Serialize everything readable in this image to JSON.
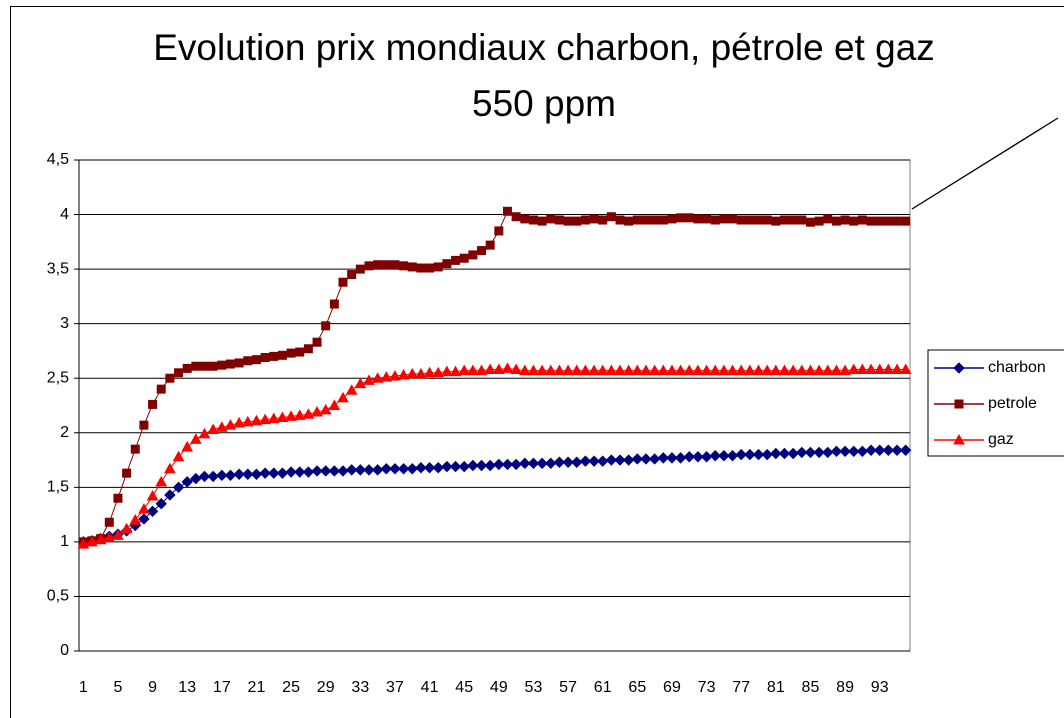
{
  "chart_data": {
    "type": "line",
    "title": "Evolution prix mondiaux charbon, pétrole et gaz",
    "subtitle": "550 ppm",
    "categories": [
      1,
      null,
      null,
      null,
      5,
      null,
      null,
      null,
      9,
      null,
      null,
      null,
      13,
      null,
      null,
      null,
      17,
      null,
      null,
      null,
      21,
      null,
      null,
      null,
      25,
      null,
      null,
      null,
      29,
      null,
      null,
      null,
      33,
      null,
      null,
      null,
      37,
      null,
      null,
      null,
      41,
      null,
      null,
      null,
      45,
      null,
      null,
      null,
      49,
      null,
      null,
      null,
      53,
      null,
      null,
      null,
      57,
      null,
      null,
      null,
      61,
      null,
      null,
      null,
      65,
      null,
      null,
      null,
      69,
      null,
      null,
      null,
      73,
      null,
      null,
      null,
      77,
      null,
      null,
      null,
      81,
      null,
      null,
      null,
      85,
      null,
      null,
      null,
      89,
      null,
      null,
      null,
      93,
      null,
      null,
      null
    ],
    "ylim": [
      0,
      4.5
    ],
    "yticks": [
      0,
      {
        "value": 0.5,
        "label": "0,5"
      },
      1,
      {
        "value": 1.5,
        "label": "1,5"
      },
      2,
      {
        "value": 2.5,
        "label": "2,5"
      },
      3,
      {
        "value": 3.5,
        "label": "3,5"
      },
      4,
      {
        "value": 4.5,
        "label": "4,5"
      }
    ],
    "grid": true,
    "legend": "right",
    "series": [
      {
        "name": "charbon",
        "color": "#000080",
        "marker": "diamond",
        "values": [
          1.0,
          1.01,
          1.03,
          1.05,
          1.07,
          1.1,
          1.15,
          1.21,
          1.28,
          1.35,
          1.43,
          1.5,
          1.55,
          1.58,
          1.6,
          1.6,
          1.61,
          1.61,
          1.62,
          1.62,
          1.62,
          1.63,
          1.63,
          1.63,
          1.64,
          1.64,
          1.64,
          1.65,
          1.65,
          1.65,
          1.65,
          1.66,
          1.66,
          1.66,
          1.66,
          1.67,
          1.67,
          1.67,
          1.67,
          1.68,
          1.68,
          1.68,
          1.69,
          1.69,
          1.69,
          1.7,
          1.7,
          1.7,
          1.71,
          1.71,
          1.71,
          1.72,
          1.72,
          1.72,
          1.72,
          1.73,
          1.73,
          1.73,
          1.74,
          1.74,
          1.74,
          1.75,
          1.75,
          1.75,
          1.76,
          1.76,
          1.76,
          1.77,
          1.77,
          1.77,
          1.78,
          1.78,
          1.78,
          1.79,
          1.79,
          1.79,
          1.8,
          1.8,
          1.8,
          1.8,
          1.81,
          1.81,
          1.81,
          1.82,
          1.82,
          1.82,
          1.82,
          1.83,
          1.83,
          1.83,
          1.83,
          1.84,
          1.84,
          1.84,
          1.84,
          1.84
        ]
      },
      {
        "name": "petrole",
        "color": "#800000",
        "marker": "square",
        "values": [
          1.0,
          1.01,
          1.03,
          1.18,
          1.4,
          1.63,
          1.85,
          2.07,
          2.26,
          2.4,
          2.5,
          2.55,
          2.59,
          2.61,
          2.61,
          2.61,
          2.62,
          2.63,
          2.64,
          2.66,
          2.67,
          2.69,
          2.7,
          2.71,
          2.73,
          2.74,
          2.77,
          2.83,
          2.98,
          3.18,
          3.38,
          3.45,
          3.5,
          3.53,
          3.54,
          3.54,
          3.54,
          3.53,
          3.52,
          3.51,
          3.51,
          3.52,
          3.55,
          3.58,
          3.6,
          3.63,
          3.67,
          3.72,
          3.85,
          4.03,
          3.98,
          3.96,
          3.95,
          3.94,
          3.96,
          3.95,
          3.94,
          3.94,
          3.95,
          3.96,
          3.95,
          3.98,
          3.95,
          3.94,
          3.95,
          3.95,
          3.95,
          3.95,
          3.96,
          3.97,
          3.97,
          3.96,
          3.96,
          3.95,
          3.96,
          3.96,
          3.95,
          3.95,
          3.95,
          3.95,
          3.94,
          3.95,
          3.95,
          3.95,
          3.93,
          3.94,
          3.96,
          3.94,
          3.95,
          3.94,
          3.95,
          3.94,
          3.94,
          3.94,
          3.94,
          3.94
        ]
      },
      {
        "name": "gaz",
        "color": "#ff0000",
        "marker": "triangle",
        "values": [
          0.98,
          1.0,
          1.02,
          1.04,
          1.06,
          1.12,
          1.2,
          1.3,
          1.42,
          1.55,
          1.67,
          1.78,
          1.87,
          1.94,
          1.99,
          2.03,
          2.05,
          2.07,
          2.09,
          2.1,
          2.11,
          2.12,
          2.13,
          2.14,
          2.15,
          2.16,
          2.17,
          2.19,
          2.21,
          2.25,
          2.32,
          2.39,
          2.45,
          2.48,
          2.5,
          2.51,
          2.52,
          2.53,
          2.54,
          2.54,
          2.55,
          2.55,
          2.56,
          2.56,
          2.57,
          2.57,
          2.57,
          2.58,
          2.58,
          2.59,
          2.58,
          2.57,
          2.57,
          2.57,
          2.57,
          2.57,
          2.57,
          2.57,
          2.57,
          2.57,
          2.57,
          2.57,
          2.57,
          2.57,
          2.57,
          2.57,
          2.57,
          2.57,
          2.57,
          2.57,
          2.57,
          2.57,
          2.57,
          2.57,
          2.57,
          2.57,
          2.57,
          2.57,
          2.57,
          2.57,
          2.57,
          2.57,
          2.57,
          2.57,
          2.57,
          2.57,
          2.57,
          2.57,
          2.57,
          2.58,
          2.58,
          2.58,
          2.58,
          2.58,
          2.58,
          2.58
        ]
      }
    ]
  }
}
